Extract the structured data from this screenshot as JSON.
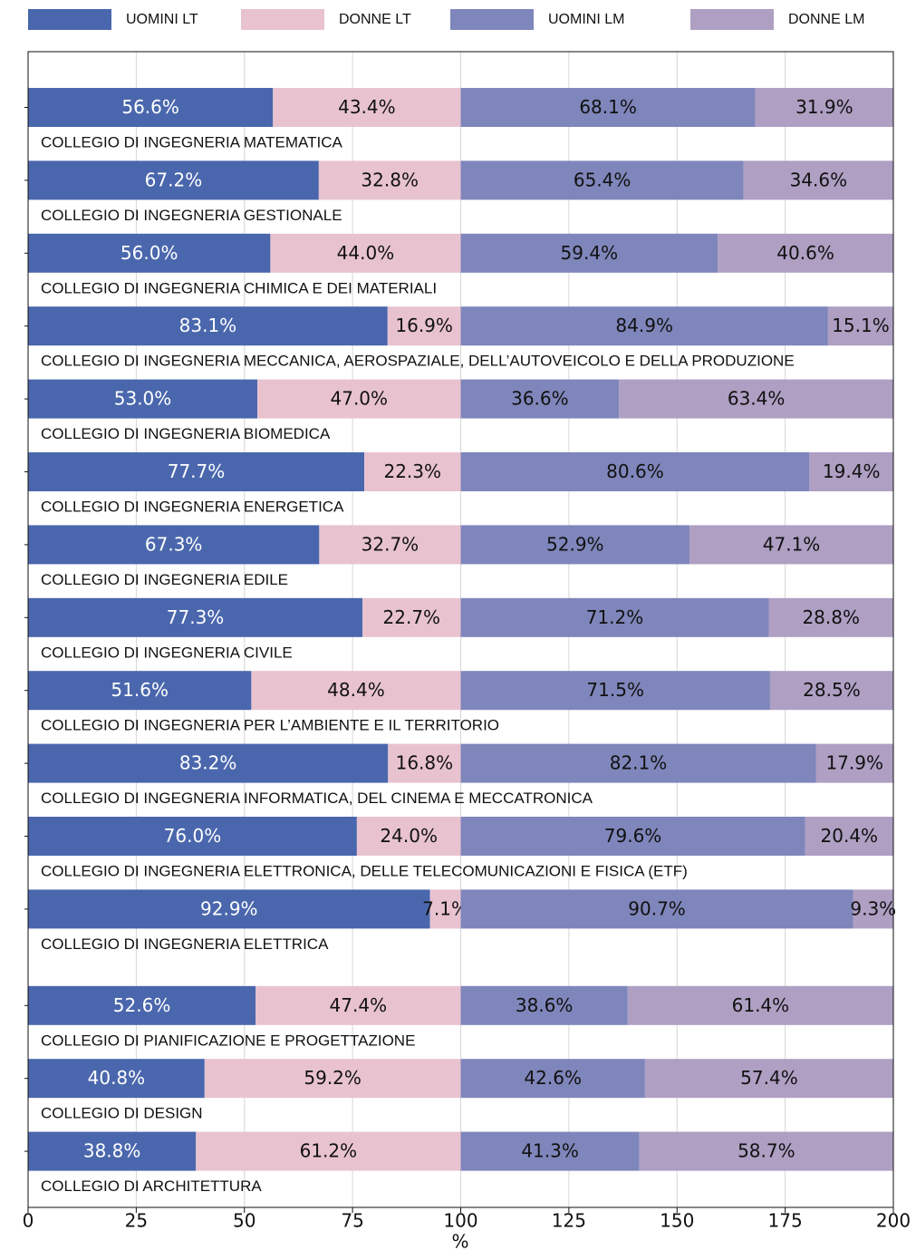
{
  "chart_data": {
    "type": "stacked-barh",
    "categories": [
      "COLLEGIO DI INGEGNERIA MATEMATICA",
      "COLLEGIO DI INGEGNERIA GESTIONALE",
      "COLLEGIO DI INGEGNERIA CHIMICA E DEI MATERIALI",
      "COLLEGIO DI INGEGNERIA MECCANICA, AEROSPAZIALE, DELL’AUTOVEICOLO E DELLA PRODUZIONE",
      "COLLEGIO DI INGEGNERIA BIOMEDICA",
      "COLLEGIO DI INGEGNERIA ENERGETICA",
      "COLLEGIO DI INGEGNERIA EDILE",
      "COLLEGIO DI INGEGNERIA CIVILE",
      "COLLEGIO DI INGEGNERIA PER L’AMBIENTE E IL TERRITORIO",
      "COLLEGIO DI INGEGNERIA INFORMATICA, DEL CINEMA E MECCATRONICA",
      "COLLEGIO DI INGEGNERIA ELETTRONICA, DELLE TELECOMUNICAZIONI E FISICA (ETF)",
      "COLLEGIO DI INGEGNERIA ELETTRICA",
      "COLLEGIO DI PIANIFICAZIONE E PROGETTAZIONE",
      "COLLEGIO DI DESIGN",
      "COLLEGIO DI ARCHITETTURA"
    ],
    "series": [
      {
        "name": "UOMINI LT",
        "color": "#4a67ad",
        "label_color": "#ffffff",
        "values": [
          56.6,
          67.2,
          56.0,
          83.1,
          53.0,
          77.7,
          67.3,
          77.3,
          51.6,
          83.2,
          76.0,
          92.9,
          52.6,
          40.8,
          38.8
        ],
        "value_labels": [
          "56.6%",
          "67.2%",
          "56.0%",
          "83.1%",
          "53.0%",
          "77.7%",
          "67.3%",
          "77.3%",
          "51.6%",
          "83.2%",
          "76.0%",
          "92.9%",
          "52.6%",
          "40.8%",
          "38.8%"
        ]
      },
      {
        "name": "DONNE LT",
        "color": "#e8c3cf",
        "label_color": "#111111",
        "values": [
          43.4,
          32.8,
          44.0,
          16.9,
          47.0,
          22.3,
          32.7,
          22.7,
          48.4,
          16.8,
          24.0,
          7.1,
          47.4,
          59.2,
          61.2
        ],
        "value_labels": [
          "43.4%",
          "32.8%",
          "44.0%",
          "16.9%",
          "47.0%",
          "22.3%",
          "32.7%",
          "22.7%",
          "48.4%",
          "16.8%",
          "24.0%",
          "7.1%",
          "47.4%",
          "59.2%",
          "61.2%"
        ]
      },
      {
        "name": "UOMINI LM",
        "color": "#7f86bb",
        "label_color": "#111111",
        "values": [
          68.1,
          65.4,
          59.4,
          84.9,
          36.6,
          80.6,
          52.9,
          71.2,
          71.5,
          82.1,
          79.6,
          90.7,
          38.6,
          42.6,
          41.3
        ],
        "value_labels": [
          "68.1%",
          "65.4%",
          "59.4%",
          "84.9%",
          "36.6%",
          "80.6%",
          "52.9%",
          "71.2%",
          "71.5%",
          "82.1%",
          "79.6%",
          "90.7%",
          "38.6%",
          "42.6%",
          "41.3%"
        ]
      },
      {
        "name": "DONNE LM",
        "color": "#ae9fc3",
        "label_color": "#111111",
        "values": [
          31.9,
          34.6,
          40.6,
          15.1,
          63.4,
          19.4,
          47.1,
          28.8,
          28.5,
          17.9,
          20.4,
          9.3,
          61.4,
          57.4,
          58.7
        ],
        "value_labels": [
          "31.9%",
          "34.6%",
          "40.6%",
          "15.1%",
          "63.4%",
          "19.4%",
          "47.1%",
          "28.8%",
          "28.5%",
          "17.9%",
          "20.4%",
          "9.3%",
          "61.4%",
          "57.4%",
          "58.7%"
        ]
      }
    ],
    "xlabel": "%",
    "xlim": [
      0,
      200
    ],
    "xticks": [
      0,
      25,
      50,
      75,
      100,
      125,
      150,
      175,
      200
    ],
    "grid": true,
    "legend": "top"
  }
}
